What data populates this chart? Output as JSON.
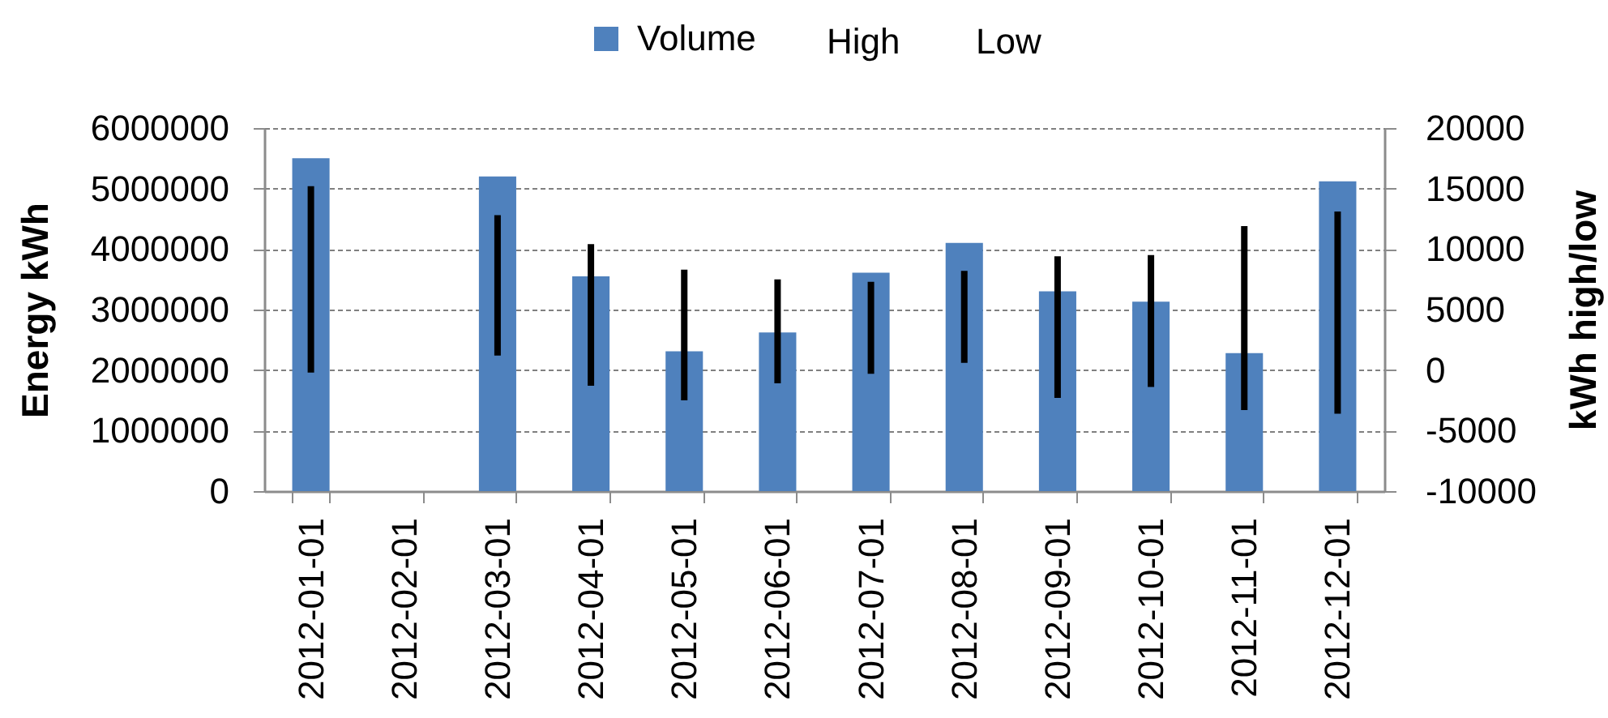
{
  "chart_data": {
    "type": "bar",
    "ylabel": "Energy kWh",
    "y2label": "kWh high/low",
    "categories": [
      "2012-01-01",
      "2012-02-01",
      "2012-03-01",
      "2012-04-01",
      "2012-05-01",
      "2012-06-01",
      "2012-07-01",
      "2012-08-01",
      "2012-09-01",
      "2012-10-01",
      "2012-11-01",
      "2012-12-01"
    ],
    "series": [
      {
        "name": "Volume",
        "color": "#4f81bd",
        "values": [
          5500000,
          null,
          5200000,
          3550000,
          2310000,
          2620000,
          3610000,
          4100000,
          3300000,
          3130000,
          2280000,
          5120000
        ]
      },
      {
        "axis": "y2",
        "color": "#000000",
        "base": [
          -200,
          null,
          1200,
          -1300,
          -2500,
          -1100,
          -300,
          600,
          -2300,
          -1400,
          -3300,
          -3600
        ],
        "values": [
          15400,
          null,
          11600,
          11700,
          10800,
          8600,
          7600,
          7600,
          11700,
          10900,
          15200,
          16700
        ]
      }
    ],
    "ylim": [
      0,
      6000000
    ],
    "yticks": [
      0,
      1000000,
      2000000,
      3000000,
      4000000,
      5000000,
      6000000
    ],
    "y2lim": [
      -10000,
      20000
    ],
    "y2ticks": [
      -10000,
      -5000,
      0,
      5000,
      10000,
      15000,
      20000
    ],
    "annotations": [
      "High",
      "Low"
    ],
    "grid": "y",
    "legend": "top"
  }
}
